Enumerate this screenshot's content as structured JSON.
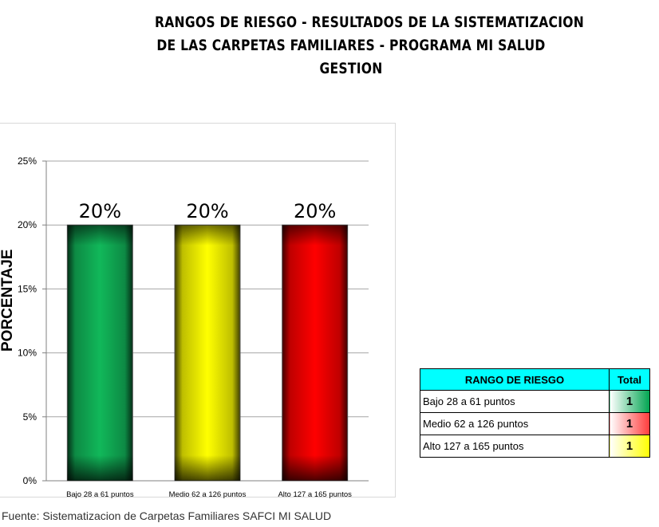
{
  "title": {
    "line1": "RANGOS DE RIESGO - RESULTADOS DE LA SISTEMATIZACION",
    "line2": "DE LAS CARPETAS FAMILIARES - PROGRAMA MI SALUD",
    "line3": "GESTION"
  },
  "chart_data": {
    "type": "bar",
    "categories": [
      "Bajo 28 a 61 puntos",
      "Medio 62 a 126 puntos",
      "Alto 127 a 165 puntos"
    ],
    "values": [
      20,
      20,
      20
    ],
    "data_labels": [
      "20%",
      "20%",
      "20%"
    ],
    "bar_colors": [
      "#11b85a",
      "#ffff00",
      "#ff0000"
    ],
    "ylabel": "PORCENTAJE",
    "xlabel": "",
    "ylim": [
      0,
      25
    ],
    "yticks": [
      "0%",
      "5%",
      "10%",
      "15%",
      "20%",
      "25%"
    ],
    "grid": true,
    "legend": "none"
  },
  "source": "Fuente: Sistematizacion de Carpetas Familiares SAFCI MI SALUD",
  "table": {
    "headers": [
      "RANGO DE RIESGO",
      "Total"
    ],
    "rows": [
      {
        "label": "Bajo 28 a 61 puntos",
        "value": "1",
        "color": "#00a550"
      },
      {
        "label": "Medio 62 a 126 puntos",
        "value": "1",
        "color": "#ff3b3b"
      },
      {
        "label": "Alto 127 a 165 puntos",
        "value": "1",
        "color": "#ffff00"
      }
    ]
  }
}
